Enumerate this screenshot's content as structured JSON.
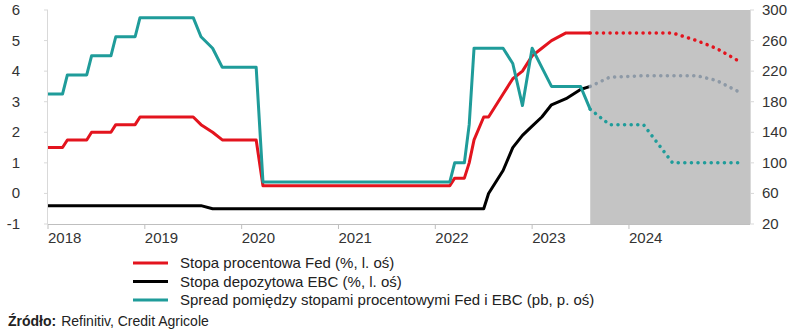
{
  "chart_data": {
    "type": "line",
    "x": [
      2018.0,
      2018.15,
      2018.2,
      2018.4,
      2018.45,
      2018.65,
      2018.7,
      2018.9,
      2018.95,
      2019.5,
      2019.58,
      2019.7,
      2019.8,
      2020.15,
      2020.22,
      2022.15,
      2022.2,
      2022.3,
      2022.35,
      2022.4,
      2022.5,
      2022.55,
      2022.7,
      2022.8,
      2022.9,
      2023.0,
      2023.1,
      2023.2,
      2023.35,
      2023.5,
      2023.6,
      2023.8,
      2024.15,
      2024.45,
      2024.7,
      2024.9,
      2025.15
    ],
    "xlim": [
      2018,
      2025.25
    ],
    "xticks": [
      2018,
      2019,
      2020,
      2021,
      2022,
      2023,
      2024
    ],
    "ylim": [
      -1,
      6
    ],
    "yticks": [
      -1,
      0,
      1,
      2,
      3,
      4,
      5,
      6
    ],
    "y2lim": [
      20,
      300
    ],
    "y2ticks": [
      20,
      60,
      100,
      140,
      180,
      220,
      260,
      300
    ],
    "forecast_from": 2023.6,
    "grid": false,
    "legend": "bottom",
    "series": [
      {
        "name": "Stopa procentowa Fed (%, l. oś)",
        "color": "#e3141e",
        "values": [
          1.5,
          1.5,
          1.75,
          1.75,
          2.0,
          2.0,
          2.25,
          2.25,
          2.5,
          2.5,
          2.25,
          2.0,
          1.75,
          1.75,
          0.25,
          0.25,
          0.5,
          0.5,
          1.0,
          1.75,
          2.5,
          2.5,
          3.25,
          3.75,
          4.0,
          4.5,
          4.75,
          5.0,
          5.25,
          5.25,
          5.25,
          5.25,
          5.25,
          5.25,
          5.0,
          4.75,
          4.3
        ]
      },
      {
        "name": "Stopa depozytowa EBC (%, l. oś)",
        "color": "#000000",
        "values": [
          -0.4,
          -0.4,
          -0.4,
          -0.4,
          -0.4,
          -0.4,
          -0.4,
          -0.4,
          -0.4,
          -0.4,
          -0.4,
          -0.5,
          -0.5,
          -0.5,
          -0.5,
          -0.5,
          -0.5,
          -0.5,
          -0.5,
          -0.5,
          -0.5,
          0,
          0.75,
          1.5,
          1.9,
          2.2,
          2.5,
          2.9,
          3.1,
          3.4,
          3.5,
          3.8,
          3.85,
          3.85,
          3.85,
          3.7,
          3.3
        ]
      },
      {
        "name": "Spread pomiędzy stopami procentowymi Fed i EBC (pb, p. oś)",
        "color": "#1f9c9a",
        "axis": "y2",
        "values": [
          190,
          190,
          215,
          215,
          240,
          240,
          265,
          265,
          290,
          290,
          265,
          250,
          225,
          225,
          75,
          75,
          100,
          100,
          150,
          250,
          250,
          250,
          250,
          230,
          175,
          250,
          225,
          200,
          200,
          200,
          170,
          150,
          150,
          100,
          100,
          100,
          100
        ]
      }
    ],
    "source_label": "Źródło:",
    "source": "Refinitiv, Credit Agricole"
  }
}
